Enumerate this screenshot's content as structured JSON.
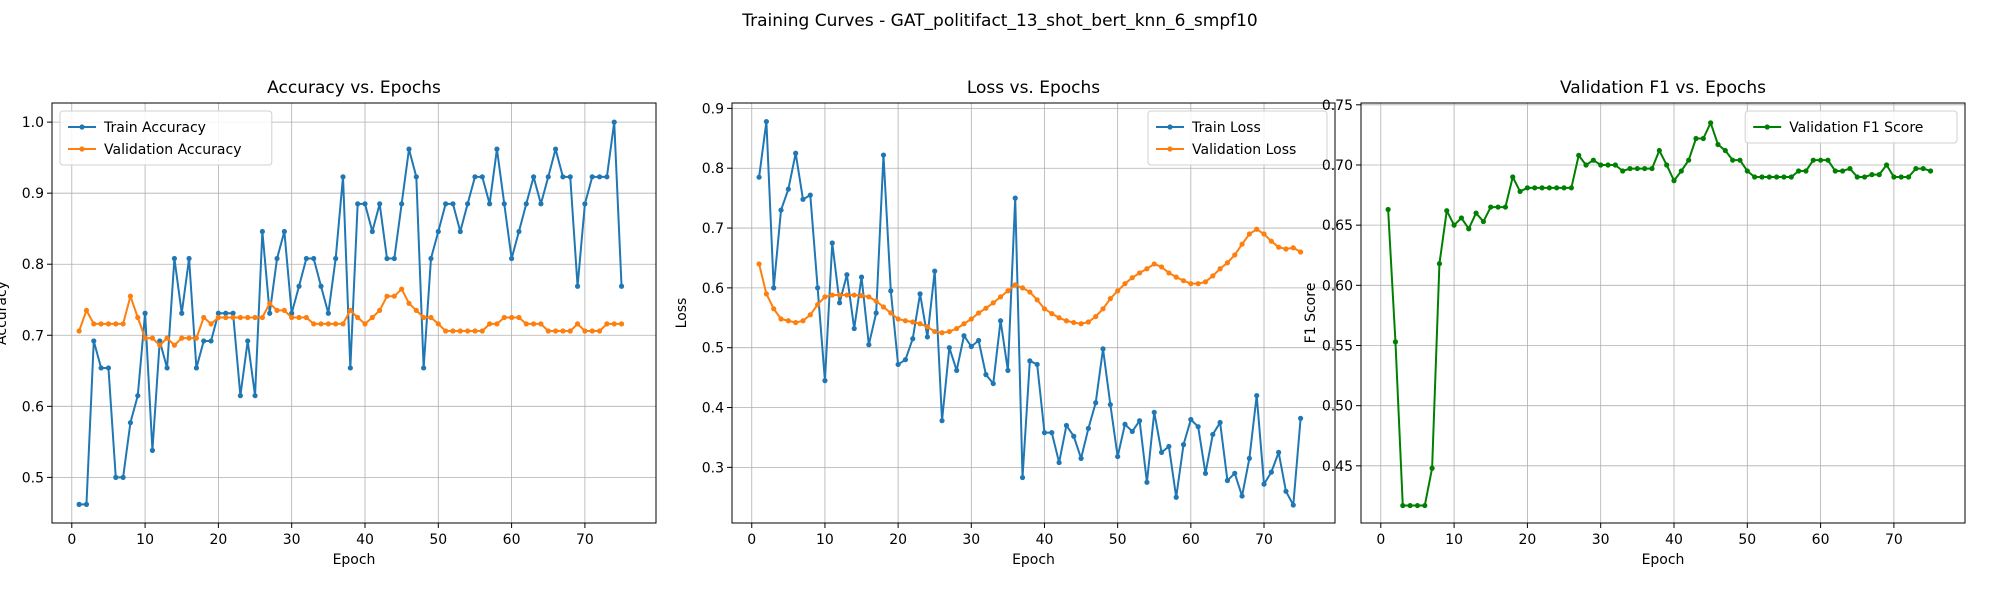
{
  "figure": {
    "suptitle": "Training Curves - GAT_politifact_13_shot_bert_knn_6_smpf10"
  },
  "chart_data": [
    {
      "type": "line",
      "title": "Accuracy vs. Epochs",
      "xlabel": "Epoch",
      "ylabel": "Accuracy",
      "xlim": [
        -2.7,
        79.7
      ],
      "ylim": [
        0.4358,
        1.0269
      ],
      "xticks": [
        0,
        10,
        20,
        30,
        40,
        50,
        60,
        70
      ],
      "yticks": [
        0.5,
        0.6,
        0.7,
        0.8,
        0.9,
        1.0
      ],
      "ytick_labels": [
        "0.5",
        "0.6",
        "0.7",
        "0.8",
        "0.9",
        "1.0"
      ],
      "grid": true,
      "legend": "upper left",
      "series": [
        {
          "name": "Train Accuracy",
          "color": "#1f77b4",
          "values": [
            0.462,
            0.462,
            0.692,
            0.654,
            0.654,
            0.5,
            0.5,
            0.577,
            0.615,
            0.731,
            0.538,
            0.692,
            0.654,
            0.808,
            0.731,
            0.808,
            0.654,
            0.692,
            0.692,
            0.731,
            0.731,
            0.731,
            0.615,
            0.692,
            0.615,
            0.846,
            0.731,
            0.808,
            0.846,
            0.731,
            0.769,
            0.808,
            0.808,
            0.769,
            0.731,
            0.808,
            0.923,
            0.654,
            0.885,
            0.885,
            0.846,
            0.885,
            0.808,
            0.808,
            0.885,
            0.962,
            0.923,
            0.654,
            0.808,
            0.846,
            0.885,
            0.885,
            0.846,
            0.885,
            0.923,
            0.923,
            0.885,
            0.962,
            0.885,
            0.808,
            0.846,
            0.885,
            0.923,
            0.885,
            0.923,
            0.962,
            0.923,
            0.923,
            0.769,
            0.885,
            0.923,
            0.923,
            0.923,
            1.0,
            0.769
          ]
        },
        {
          "name": "Validation Accuracy",
          "color": "#ff7f0e",
          "values": [
            0.706,
            0.735,
            0.716,
            0.716,
            0.716,
            0.716,
            0.716,
            0.755,
            0.725,
            0.696,
            0.696,
            0.686,
            0.696,
            0.686,
            0.696,
            0.696,
            0.696,
            0.725,
            0.716,
            0.725,
            0.725,
            0.725,
            0.725,
            0.725,
            0.725,
            0.725,
            0.745,
            0.735,
            0.735,
            0.725,
            0.725,
            0.725,
            0.716,
            0.716,
            0.716,
            0.716,
            0.716,
            0.735,
            0.725,
            0.716,
            0.725,
            0.735,
            0.755,
            0.755,
            0.765,
            0.745,
            0.735,
            0.725,
            0.725,
            0.716,
            0.706,
            0.706,
            0.706,
            0.706,
            0.706,
            0.706,
            0.716,
            0.716,
            0.725,
            0.725,
            0.725,
            0.716,
            0.716,
            0.716,
            0.706,
            0.706,
            0.706,
            0.706,
            0.716,
            0.706,
            0.706,
            0.706,
            0.716,
            0.716,
            0.716
          ]
        }
      ]
    },
    {
      "type": "line",
      "title": "Loss vs. Epochs",
      "xlabel": "Epoch",
      "ylabel": "Loss",
      "xlim": [
        -2.7,
        79.7
      ],
      "ylim": [
        0.207,
        0.909
      ],
      "xticks": [
        0,
        10,
        20,
        30,
        40,
        50,
        60,
        70
      ],
      "yticks": [
        0.3,
        0.4,
        0.5,
        0.6,
        0.7,
        0.8,
        0.9
      ],
      "ytick_labels": [
        "0.3",
        "0.4",
        "0.5",
        "0.6",
        "0.7",
        "0.8",
        "0.9"
      ],
      "grid": true,
      "legend": "upper right",
      "series": [
        {
          "name": "Train Loss",
          "color": "#1f77b4",
          "values": [
            0.785,
            0.878,
            0.6,
            0.73,
            0.765,
            0.825,
            0.748,
            0.755,
            0.6,
            0.445,
            0.675,
            0.575,
            0.622,
            0.532,
            0.618,
            0.505,
            0.558,
            0.822,
            0.595,
            0.472,
            0.48,
            0.515,
            0.59,
            0.518,
            0.628,
            0.378,
            0.5,
            0.462,
            0.52,
            0.502,
            0.512,
            0.455,
            0.44,
            0.545,
            0.462,
            0.75,
            0.283,
            0.478,
            0.472,
            0.358,
            0.358,
            0.308,
            0.37,
            0.352,
            0.315,
            0.365,
            0.408,
            0.498,
            0.405,
            0.318,
            0.372,
            0.36,
            0.378,
            0.275,
            0.392,
            0.325,
            0.335,
            0.25,
            0.338,
            0.38,
            0.368,
            0.29,
            0.355,
            0.375,
            0.278,
            0.29,
            0.252,
            0.315,
            0.42,
            0.272,
            0.292,
            0.325,
            0.26,
            0.237,
            0.382
          ]
        },
        {
          "name": "Validation Loss",
          "color": "#ff7f0e",
          "values": [
            0.64,
            0.59,
            0.565,
            0.548,
            0.545,
            0.542,
            0.545,
            0.555,
            0.572,
            0.585,
            0.588,
            0.588,
            0.588,
            0.588,
            0.587,
            0.585,
            0.578,
            0.568,
            0.558,
            0.548,
            0.545,
            0.543,
            0.54,
            0.535,
            0.527,
            0.525,
            0.527,
            0.532,
            0.54,
            0.548,
            0.558,
            0.566,
            0.575,
            0.585,
            0.595,
            0.605,
            0.6,
            0.593,
            0.58,
            0.565,
            0.557,
            0.55,
            0.545,
            0.542,
            0.54,
            0.543,
            0.552,
            0.565,
            0.582,
            0.595,
            0.607,
            0.617,
            0.625,
            0.632,
            0.64,
            0.635,
            0.625,
            0.618,
            0.612,
            0.607,
            0.607,
            0.61,
            0.62,
            0.632,
            0.642,
            0.655,
            0.673,
            0.69,
            0.698,
            0.69,
            0.678,
            0.668,
            0.665,
            0.667,
            0.66
          ]
        }
      ]
    },
    {
      "type": "line",
      "title": "Validation F1 vs. Epochs",
      "xlabel": "Epoch",
      "ylabel": "F1 Score",
      "xlim": [
        -2.7,
        79.7
      ],
      "ylim": [
        0.4025,
        0.7515
      ],
      "xticks": [
        0,
        10,
        20,
        30,
        40,
        50,
        60,
        70
      ],
      "yticks": [
        0.45,
        0.5,
        0.55,
        0.6,
        0.65,
        0.7,
        0.75
      ],
      "ytick_labels": [
        "0.45",
        "0.50",
        "0.55",
        "0.60",
        "0.65",
        "0.70",
        "0.75"
      ],
      "grid": true,
      "legend": "upper right",
      "series": [
        {
          "name": "Validation F1 Score",
          "color": "#008000",
          "values": [
            0.663,
            0.553,
            0.417,
            0.417,
            0.417,
            0.417,
            0.448,
            0.618,
            0.662,
            0.65,
            0.656,
            0.647,
            0.66,
            0.653,
            0.665,
            0.665,
            0.665,
            0.69,
            0.678,
            0.681,
            0.681,
            0.681,
            0.681,
            0.681,
            0.681,
            0.681,
            0.708,
            0.7,
            0.704,
            0.7,
            0.7,
            0.7,
            0.695,
            0.697,
            0.697,
            0.697,
            0.697,
            0.712,
            0.7,
            0.687,
            0.695,
            0.704,
            0.722,
            0.722,
            0.735,
            0.717,
            0.712,
            0.704,
            0.704,
            0.695,
            0.69,
            0.69,
            0.69,
            0.69,
            0.69,
            0.69,
            0.695,
            0.695,
            0.704,
            0.704,
            0.704,
            0.695,
            0.695,
            0.697,
            0.69,
            0.69,
            0.692,
            0.692,
            0.7,
            0.69,
            0.69,
            0.69,
            0.697,
            0.697,
            0.695
          ]
        }
      ]
    }
  ]
}
